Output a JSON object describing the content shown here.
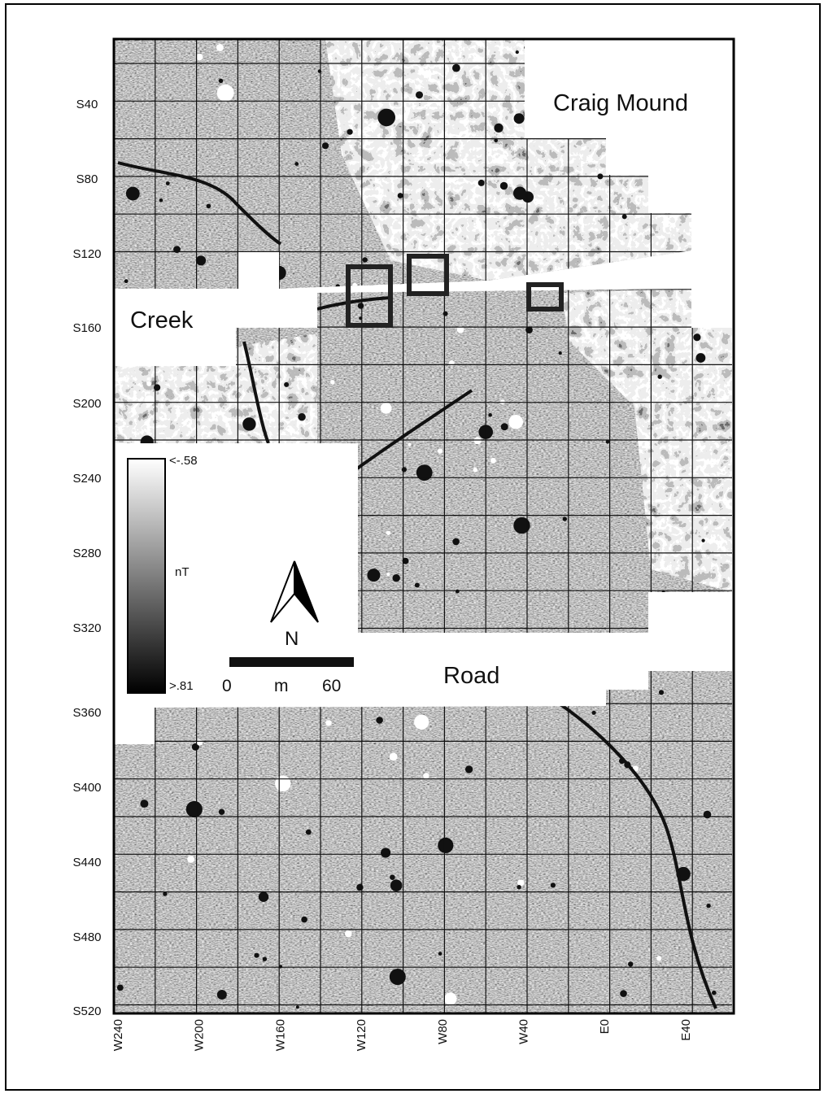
{
  "map": {
    "labels": {
      "craig_mound": "Craig Mound",
      "creek": "Creek",
      "road": "Road"
    },
    "y_axis_labels": [
      "S40",
      "S80",
      "S120",
      "S160",
      "S200",
      "S240",
      "S280",
      "S320",
      "S360",
      "S400",
      "S440",
      "S480",
      "S520"
    ],
    "x_axis_labels": [
      "W240",
      "W200",
      "W160",
      "W120",
      "W80",
      "W40",
      "E0",
      "E40"
    ],
    "legend": {
      "top": "<-.58",
      "unit": "nT",
      "bottom": ">.81"
    },
    "north": "N",
    "scale_bar": {
      "start": "0",
      "unit": "m",
      "end": "60"
    }
  }
}
